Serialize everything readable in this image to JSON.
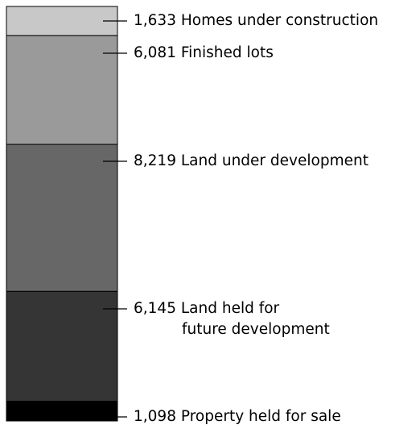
{
  "chart_data": {
    "type": "stacked-bar",
    "categories": [
      "Homes under construction",
      "Finished lots",
      "Land under development",
      "Land held for future development",
      "Property held for sale"
    ],
    "values": [
      1633,
      6081,
      8219,
      6145,
      1098
    ],
    "value_labels": [
      "1,633",
      "6,081",
      "8,219",
      "6,145",
      "1,098"
    ],
    "colors": [
      "#c8c8c8",
      "#9a9a9a",
      "#676767",
      "#353535",
      "#000000"
    ]
  }
}
